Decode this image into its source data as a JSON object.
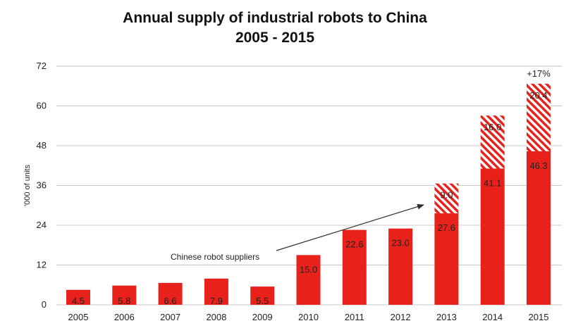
{
  "chart_data": {
    "type": "bar",
    "title": "Annual supply of industrial robots to China",
    "subtitle": "2005 - 2015",
    "ylabel": "'000 of units",
    "xlabel": "",
    "ylim": [
      0,
      72
    ],
    "yticks": [
      0,
      12,
      24,
      36,
      48,
      60,
      72
    ],
    "grid": true,
    "stacked": true,
    "categories": [
      "2005",
      "2006",
      "2007",
      "2008",
      "2009",
      "2010",
      "2011",
      "2012",
      "2013",
      "2014",
      "2015"
    ],
    "series": [
      {
        "values": [
          4.5,
          5.8,
          6.6,
          7.9,
          5.5,
          15.0,
          22.6,
          23.0,
          27.6,
          41.1,
          46.3
        ],
        "labels": [
          "4.5",
          "5.8",
          "6.6",
          "7.9",
          "5.5",
          "15.0",
          "22.6",
          "23.0",
          "27.6",
          "41.1",
          "46.3"
        ],
        "color": "#e8221b"
      },
      {
        "values": [
          null,
          null,
          null,
          null,
          null,
          null,
          null,
          null,
          9.0,
          16.0,
          20.4
        ],
        "labels": [
          "",
          "",
          "",
          "",
          "",
          "",
          "",
          "",
          "9.0",
          "16.0",
          "20.4"
        ],
        "color": "#e8221b",
        "pattern": "hatched"
      }
    ],
    "annotations": [
      {
        "text": "Chinese robot suppliers",
        "points_to": "2013"
      },
      {
        "text": "+17%",
        "category": "2015"
      }
    ]
  }
}
